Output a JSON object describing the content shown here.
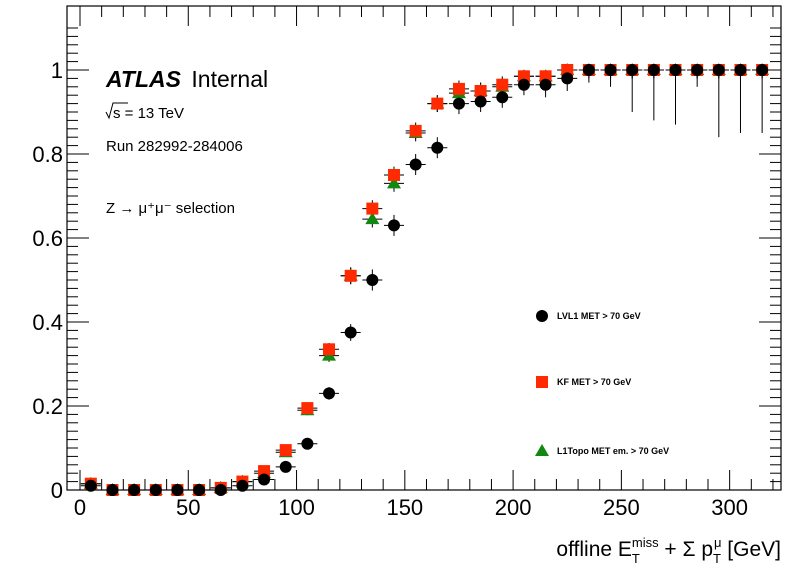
{
  "chart_data": {
    "type": "scatter",
    "xlabel": "offline E_T^miss + Σ p_T^μ [GeV]",
    "xlabel_parts": {
      "main": "offline E",
      "sup": "miss",
      "sub": "T",
      "mid": " + Σ p",
      "sup2": "μ",
      "sub2": "T",
      "unit": " [GeV]"
    },
    "xlim": [
      0,
      320
    ],
    "ylim": [
      0,
      1.1
    ],
    "xticks": [
      0,
      50,
      100,
      150,
      200,
      250,
      300
    ],
    "yticks": [
      0,
      0.2,
      0.4,
      0.6,
      0.8,
      1
    ],
    "ytick_labels": [
      "0",
      "0.2",
      "0.4",
      "0.6",
      "0.8",
      "1"
    ],
    "legend_position": "middle-right",
    "annotations": {
      "atlas": "ATLAS",
      "internal": "Internal",
      "energy": "s = 13 TeV",
      "run": "Run 282992-284006",
      "selection": "Z → μ⁺μ⁻ selection"
    },
    "x": [
      5,
      15,
      25,
      35,
      45,
      55,
      65,
      75,
      85,
      95,
      105,
      115,
      125,
      135,
      145,
      155,
      165,
      175,
      185,
      195,
      205,
      215,
      225,
      235,
      245,
      255,
      265,
      275,
      285,
      295,
      305,
      315
    ],
    "series": [
      {
        "name": "LVL1 MET > 70 GeV",
        "marker": "circle",
        "color": "#000000",
        "values": [
          0.01,
          0.0,
          0.0,
          0.0,
          0.0,
          0.0,
          0.0,
          0.01,
          0.025,
          0.055,
          0.11,
          0.23,
          0.375,
          0.5,
          0.63,
          0.775,
          0.815,
          0.92,
          0.925,
          0.935,
          0.965,
          0.965,
          0.98,
          1.0,
          1.0,
          1.0,
          1.0,
          1.0,
          1.0,
          1.0,
          1.0,
          1.0
        ],
        "errors": [
          0.01,
          0.005,
          0.005,
          0.005,
          0.005,
          0.005,
          0.005,
          0.005,
          0.008,
          0.01,
          0.012,
          0.015,
          0.02,
          0.025,
          0.025,
          0.025,
          0.025,
          0.025,
          0.025,
          0.025,
          0.025,
          0.03,
          0.03,
          0.03,
          0.04,
          0.1,
          0.12,
          0.13,
          0.04,
          0.16,
          0.15,
          0.15
        ]
      },
      {
        "name": "KF MET > 70 GeV",
        "marker": "square",
        "color": "#ff2a00",
        "values": [
          0.015,
          0.0,
          0.0,
          0.0,
          0.0,
          0.0,
          0.005,
          0.02,
          0.045,
          0.095,
          0.195,
          0.335,
          0.51,
          0.67,
          0.75,
          0.855,
          0.92,
          0.955,
          0.95,
          0.965,
          0.985,
          0.985,
          1.0,
          1.0,
          1.0,
          1.0,
          1.0,
          1.0,
          1.0,
          1.0,
          1.0,
          1.0
        ],
        "errors": [
          0.01,
          0.005,
          0.005,
          0.005,
          0.005,
          0.005,
          0.005,
          0.005,
          0.008,
          0.01,
          0.012,
          0.015,
          0.02,
          0.02,
          0.02,
          0.02,
          0.02,
          0.02,
          0.02,
          0.02,
          0.02,
          0.02,
          0.02,
          0.02,
          0.02,
          0.02,
          0.02,
          0.02,
          0.02,
          0.02,
          0.02,
          0.02
        ]
      },
      {
        "name": "L1Topo MET em. > 70 GeV",
        "marker": "triangle",
        "color": "#118811",
        "values": [
          0.015,
          0.0,
          0.0,
          0.0,
          0.0,
          0.0,
          0.005,
          0.02,
          0.04,
          0.09,
          0.19,
          0.32,
          0.51,
          0.645,
          0.73,
          0.85,
          0.92,
          0.945,
          0.95,
          0.96,
          0.985,
          0.985,
          1.0,
          1.0,
          1.0,
          1.0,
          1.0,
          1.0,
          1.0,
          1.0,
          1.0,
          1.0
        ],
        "errors": [
          0.01,
          0.005,
          0.005,
          0.005,
          0.005,
          0.005,
          0.005,
          0.005,
          0.008,
          0.01,
          0.012,
          0.015,
          0.02,
          0.02,
          0.02,
          0.02,
          0.02,
          0.02,
          0.02,
          0.02,
          0.02,
          0.02,
          0.02,
          0.02,
          0.02,
          0.02,
          0.02,
          0.02,
          0.02,
          0.02,
          0.02,
          0.02
        ]
      }
    ]
  }
}
